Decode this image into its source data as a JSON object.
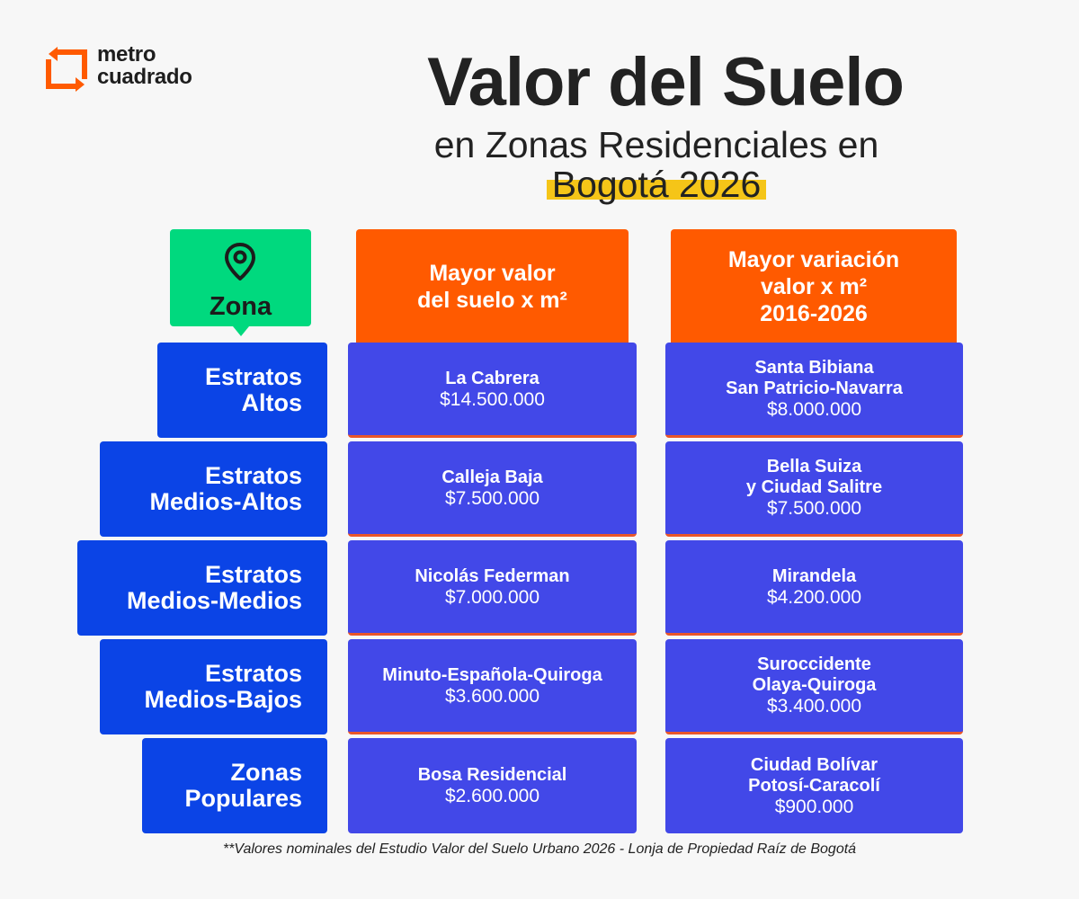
{
  "brand": {
    "line1": "metro",
    "line2": "cuadrado",
    "accent": "#ff5a00"
  },
  "title": {
    "main": "Valor del Suelo",
    "sub": "en Zonas Residenciales en",
    "year": "Bogotá 2026"
  },
  "table": {
    "zona_header": {
      "label": "Zona",
      "icon": "map-pin-icon"
    },
    "col_valor": {
      "line1": "Mayor valor",
      "line2": "del suelo x m²"
    },
    "col_variacion": {
      "line1": "Mayor variación",
      "line2": "valor x m²",
      "line3": "2016-2026"
    },
    "rows": [
      {
        "zone": [
          "Estratos",
          "Altos"
        ],
        "valor": {
          "name": [
            "La Cabrera"
          ],
          "price": "$14.500.000"
        },
        "variacion": {
          "name": [
            "Santa Bibiana",
            "San Patricio-Navarra"
          ],
          "price": "$8.000.000"
        }
      },
      {
        "zone": [
          "Estratos",
          "Medios-Altos"
        ],
        "valor": {
          "name": [
            "Calleja Baja"
          ],
          "price": "$7.500.000"
        },
        "variacion": {
          "name": [
            "Bella Suiza",
            "y Ciudad Salitre"
          ],
          "price": "$7.500.000"
        }
      },
      {
        "zone": [
          "Estratos",
          "Medios-Medios"
        ],
        "valor": {
          "name": [
            "Nicolás Federman"
          ],
          "price": "$7.000.000"
        },
        "variacion": {
          "name": [
            "Mirandela"
          ],
          "price": "$4.200.000"
        }
      },
      {
        "zone": [
          "Estratos",
          "Medios-Bajos"
        ],
        "valor": {
          "name": [
            "Minuto-Española-Quiroga"
          ],
          "price": "$3.600.000"
        },
        "variacion": {
          "name": [
            "Suroccidente",
            "Olaya-Quiroga"
          ],
          "price": "$3.400.000"
        }
      },
      {
        "zone": [
          "Zonas",
          "Populares"
        ],
        "valor": {
          "name": [
            "Bosa Residencial"
          ],
          "price": "$2.600.000"
        },
        "variacion": {
          "name": [
            "Ciudad Bolívar",
            "Potosí-Caracolí"
          ],
          "price": "$900.000"
        }
      }
    ]
  },
  "footnote": "**Valores nominales del Estudio Valor del Suelo Urbano 2026 - Lonja de Propiedad Raíz de Bogotá",
  "colors": {
    "zone_box": "#0b44e6",
    "cell": "#4248e8",
    "header_orange": "#ff5a00",
    "zona_green": "#00d97e",
    "year_highlight": "#f5c518"
  }
}
